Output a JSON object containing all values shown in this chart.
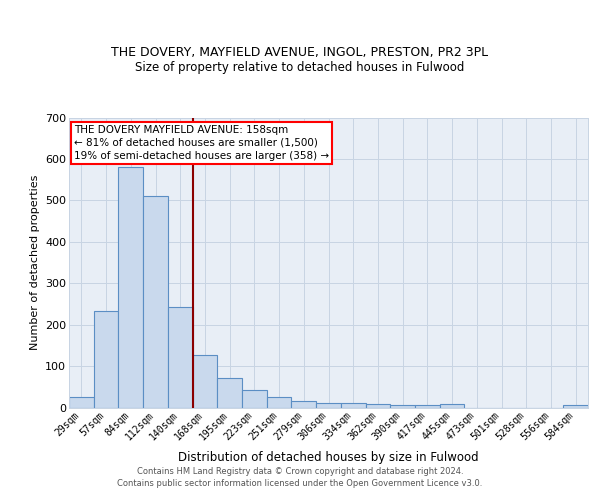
{
  "title1": "THE DOVERY, MAYFIELD AVENUE, INGOL, PRESTON, PR2 3PL",
  "title2": "Size of property relative to detached houses in Fulwood",
  "xlabel": "Distribution of detached houses by size in Fulwood",
  "ylabel": "Number of detached properties",
  "categories": [
    "29sqm",
    "57sqm",
    "84sqm",
    "112sqm",
    "140sqm",
    "168sqm",
    "195sqm",
    "223sqm",
    "251sqm",
    "279sqm",
    "306sqm",
    "334sqm",
    "362sqm",
    "390sqm",
    "417sqm",
    "445sqm",
    "473sqm",
    "501sqm",
    "528sqm",
    "556sqm",
    "584sqm"
  ],
  "values": [
    25,
    232,
    580,
    510,
    242,
    127,
    72,
    42,
    25,
    16,
    10,
    11,
    8,
    5,
    5,
    8,
    0,
    0,
    0,
    0,
    5
  ],
  "bar_color": "#c9d9ed",
  "bar_edge_color": "#5b8ec4",
  "grid_color": "#c8d4e3",
  "bg_color": "#e8eef6",
  "vline_color": "#8b0000",
  "annotation_text": "THE DOVERY MAYFIELD AVENUE: 158sqm\n← 81% of detached houses are smaller (1,500)\n19% of semi-detached houses are larger (358) →",
  "footer": "Contains HM Land Registry data © Crown copyright and database right 2024.\nContains public sector information licensed under the Open Government Licence v3.0.",
  "ylim": [
    0,
    700
  ],
  "yticks": [
    0,
    100,
    200,
    300,
    400,
    500,
    600,
    700
  ]
}
